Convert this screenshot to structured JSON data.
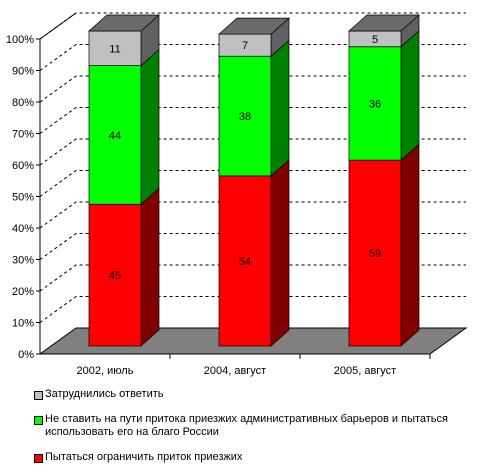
{
  "chart_data": {
    "type": "bar",
    "stacked": true,
    "three_d": true,
    "categories": [
      "2002, июль",
      "2004, август",
      "2005, август"
    ],
    "series": [
      {
        "name": "Пытаться ограничить приток приезжих",
        "color": "#ff0000",
        "values": [
          45,
          54,
          59
        ]
      },
      {
        "name": "Не ставить на пути притока приезжих административных барьеров и пытаться использовать его на благо России",
        "color": "#00ff00",
        "values": [
          44,
          38,
          36
        ]
      },
      {
        "name": "Затруднились ответить",
        "color": "#c0c0c0",
        "values": [
          11,
          7,
          5
        ]
      }
    ],
    "y_ticks": [
      "0%",
      "10%",
      "20%",
      "30%",
      "40%",
      "50%",
      "60%",
      "70%",
      "80%",
      "90%",
      "100%"
    ],
    "ylim": [
      0,
      100
    ],
    "grid": true,
    "legend_position": "bottom",
    "legend_order": [
      2,
      1,
      0
    ]
  }
}
